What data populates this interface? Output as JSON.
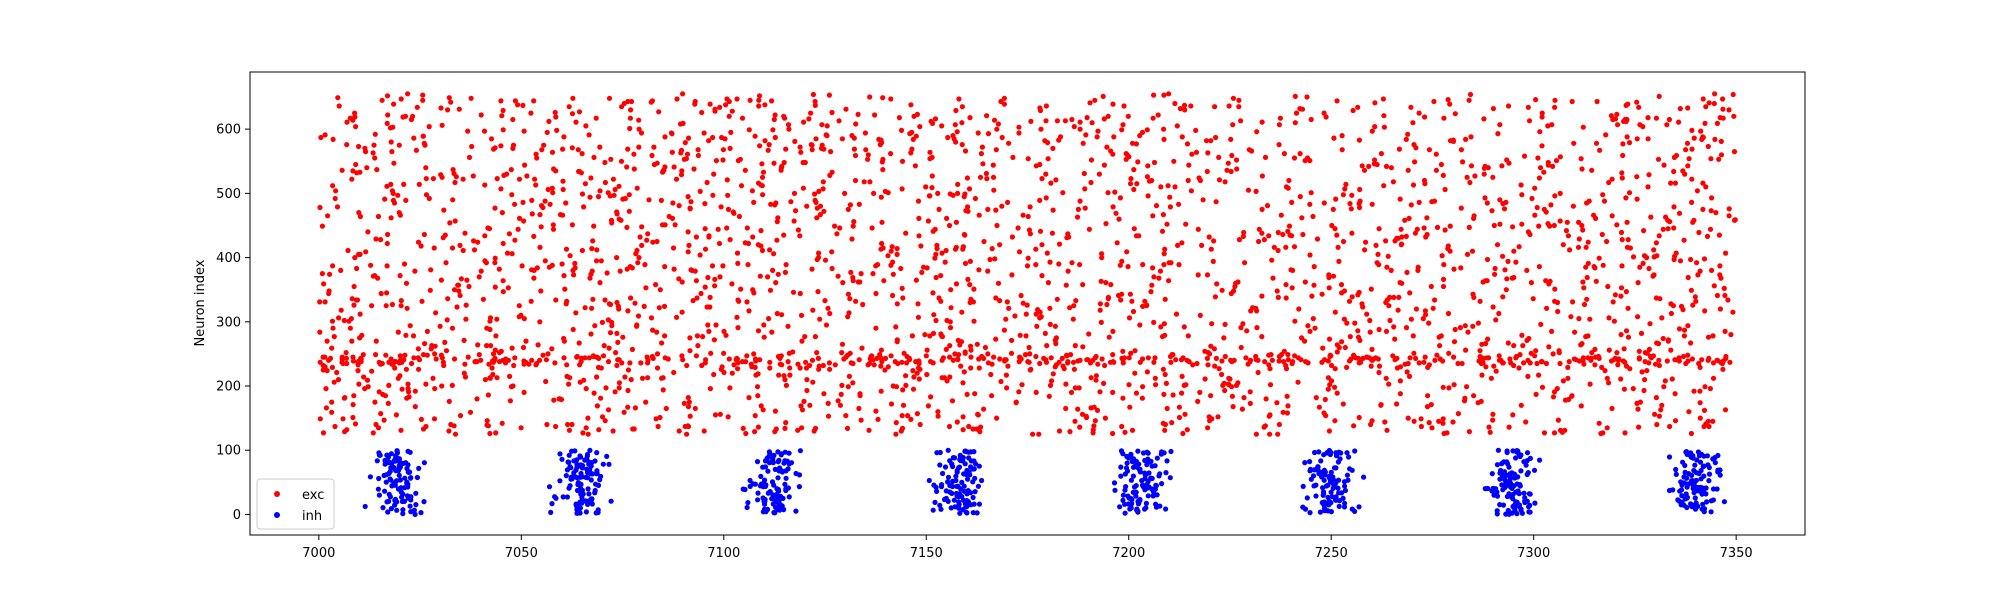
{
  "chart_data": {
    "type": "scatter",
    "title": "",
    "xlabel": "",
    "ylabel": "Neuron index",
    "xlim": [
      6983,
      7367
    ],
    "ylim": [
      -32,
      689
    ],
    "xticks": [
      7000,
      7050,
      7100,
      7150,
      7200,
      7250,
      7300,
      7350
    ],
    "yticks": [
      0,
      100,
      200,
      300,
      400,
      500,
      600
    ],
    "grid": false,
    "legend_placement": "lower-left",
    "series": [
      {
        "name": "exc",
        "color": "#ff0000",
        "neuron_range": [
          125,
          655
        ],
        "time_range": [
          7000,
          7350
        ],
        "approx_spike_count": 3000,
        "distribution": "uniform in time, denser rows near neuron index 240"
      },
      {
        "name": "inh",
        "color": "#0000ff",
        "neuron_range": [
          0,
          100
        ],
        "bursts": [
          {
            "center_time": 7019,
            "spread": 2.5,
            "count": 110
          },
          {
            "center_time": 7065,
            "spread": 3.0,
            "count": 110
          },
          {
            "center_time": 7112,
            "spread": 3.0,
            "count": 110
          },
          {
            "center_time": 7158,
            "spread": 3.0,
            "count": 110
          },
          {
            "center_time": 7203,
            "spread": 3.0,
            "count": 110
          },
          {
            "center_time": 7250,
            "spread": 3.0,
            "count": 110
          },
          {
            "center_time": 7295,
            "spread": 3.0,
            "count": 110
          },
          {
            "center_time": 7340,
            "spread": 3.0,
            "count": 110
          }
        ]
      }
    ]
  }
}
